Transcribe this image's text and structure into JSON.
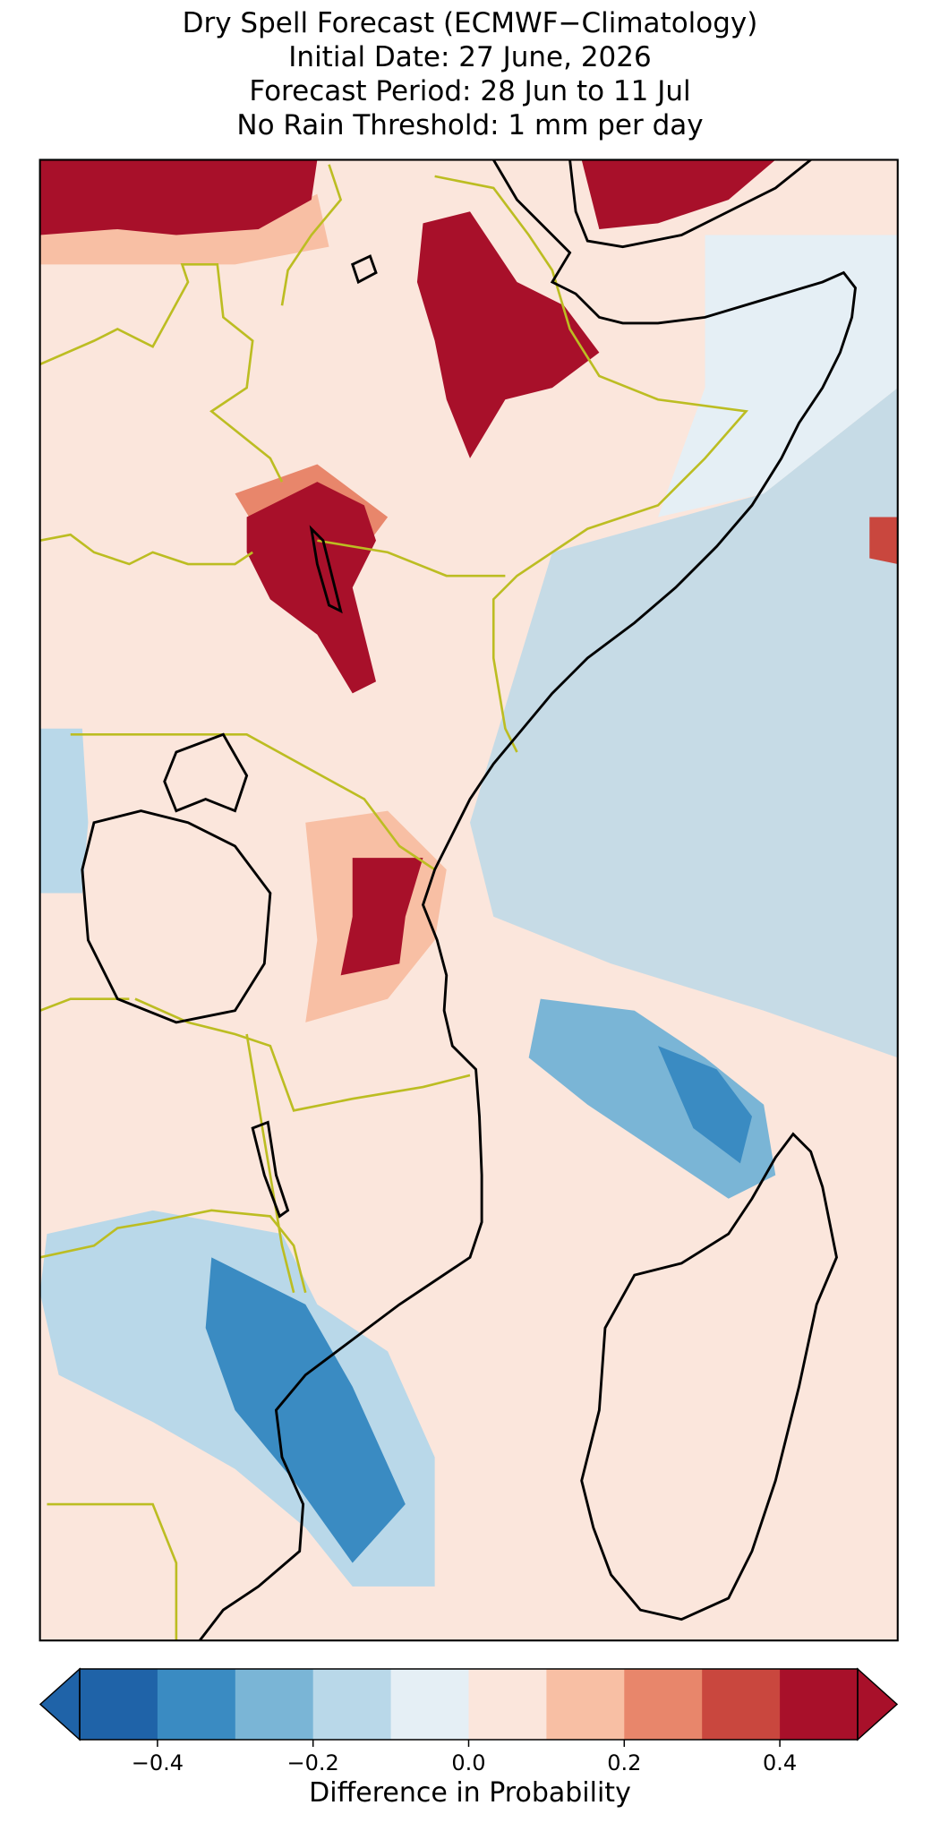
{
  "title": [
    "Dry Spell Forecast (ECMWF−Climatology)",
    "Initial Date: 27 June, 2026",
    "Forecast Period: 28 Jun to 11 Jul",
    "No Rain Threshold: 1 mm per day"
  ],
  "colorbar": {
    "label": "Difference in Probability",
    "boundaries": [
      -0.5,
      -0.4,
      -0.3,
      -0.2,
      -0.1,
      0.0,
      0.1,
      0.2,
      0.3,
      0.4,
      0.5
    ],
    "colors": [
      "#1f63a8",
      "#3a8bc2",
      "#7ab5d6",
      "#b9d8e9",
      "#e5eff5",
      "#fbe6dc",
      "#f8bfa4",
      "#e8866b",
      "#c9473e",
      "#a8102a"
    ],
    "extend": "both",
    "ticks": [
      {
        "value": -0.4,
        "label": "−0.4"
      },
      {
        "value": -0.2,
        "label": "−0.2"
      },
      {
        "value": 0.0,
        "label": "0.0"
      },
      0.2,
      0.4
    ]
  }
}
